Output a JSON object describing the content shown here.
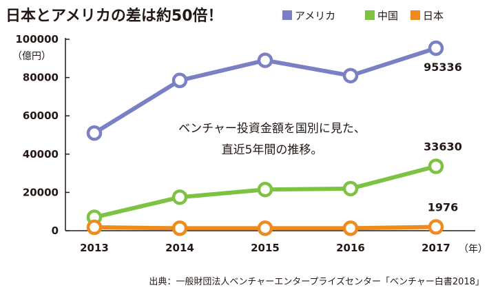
{
  "header": {
    "title": "日本とアメリカの差は約50倍！"
  },
  "chart_data": {
    "type": "line",
    "categories": [
      "2013",
      "2014",
      "2015",
      "2016",
      "2017"
    ],
    "xunit": "（年）",
    "yunit": "（億円）",
    "ylim": [
      0,
      100000
    ],
    "yticks": [
      0,
      20000,
      40000,
      60000,
      80000,
      100000
    ],
    "grid": false,
    "legend_position": "top-right",
    "series": [
      {
        "name": "アメリカ",
        "color": "#7b7fc4",
        "values": [
          51000,
          78500,
          89000,
          81000,
          95336
        ]
      },
      {
        "name": "中国",
        "color": "#7dc242",
        "values": [
          7000,
          17500,
          21500,
          22000,
          33630
        ]
      },
      {
        "name": "日本",
        "color": "#ef8a1f",
        "values": [
          1800,
          1300,
          1300,
          1300,
          1976
        ]
      }
    ],
    "value_labels": [
      "95336",
      "33630",
      "1976"
    ],
    "annotation_lines": [
      "ベンチャー投資金額を国別に見た、",
      "直近5年間の推移。"
    ],
    "source": "出典：一般財団法人ベンチャーエンタープライズセンター「ベンチャー白書2018」"
  }
}
